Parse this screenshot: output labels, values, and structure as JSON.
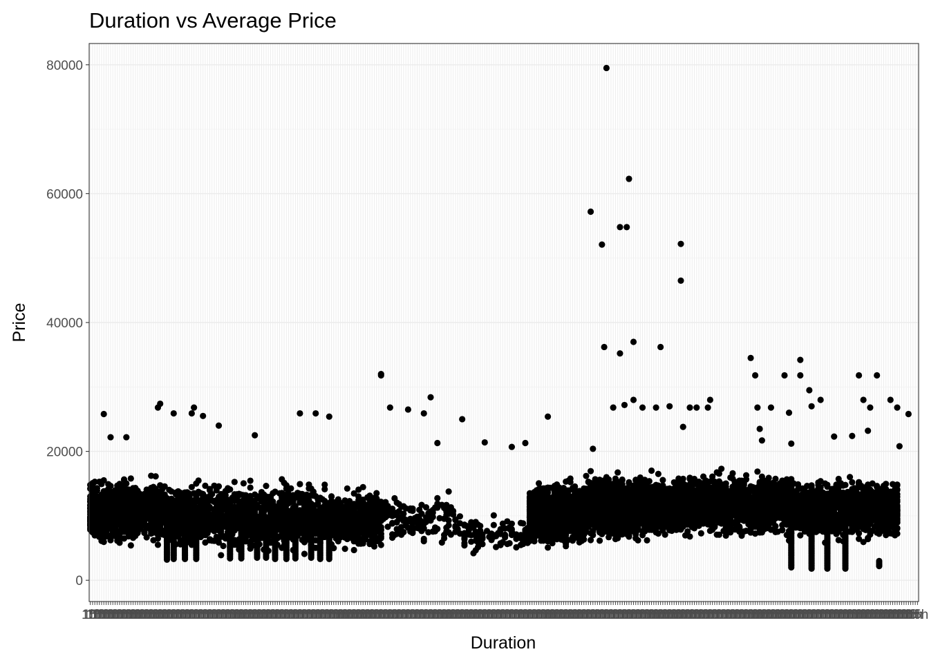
{
  "chart_data": {
    "type": "scatter",
    "title": "Duration vs Average Price",
    "xlabel": "Duration",
    "ylabel": "Price",
    "x_axis": "categorical",
    "category_count": 368,
    "ylim": [
      -3300,
      83300
    ],
    "yticks": [
      0,
      20000,
      40000,
      60000,
      80000
    ],
    "ytick_labels": [
      "0",
      "20000",
      "40000",
      "60000",
      "80000"
    ],
    "grid": true,
    "legend": "none",
    "point_color": "#000000",
    "background": "#ffffff",
    "grid_color": "#ebebeb",
    "panel_border_color": "#333333",
    "segments": [
      {
        "from": 0,
        "to": 60,
        "low": 5000,
        "high": 16500,
        "n": 850
      },
      {
        "from": 60,
        "to": 200,
        "low": 4000,
        "high": 16000,
        "n": 1300
      },
      {
        "from": 200,
        "to": 260,
        "low": 4000,
        "high": 15000,
        "n": 500
      },
      {
        "from": 260,
        "to": 330,
        "low": 5000,
        "high": 14000,
        "n": 140
      },
      {
        "from": 330,
        "to": 390,
        "low": 4000,
        "high": 10000,
        "n": 100
      },
      {
        "from": 390,
        "to": 440,
        "low": 4500,
        "high": 16000,
        "n": 1000
      },
      {
        "from": 440,
        "to": 520,
        "low": 5500,
        "high": 17000,
        "n": 1400
      },
      {
        "from": 520,
        "to": 620,
        "low": 6000,
        "high": 17500,
        "n": 1400
      },
      {
        "from": 620,
        "to": 718,
        "low": 5500,
        "high": 16500,
        "n": 1300
      }
    ],
    "columns": [
      {
        "x": 68,
        "low": 3200,
        "high": 9500
      },
      {
        "x": 74,
        "low": 3300,
        "high": 9000
      },
      {
        "x": 84,
        "low": 3300,
        "high": 9500
      },
      {
        "x": 94,
        "low": 3300,
        "high": 10500
      },
      {
        "x": 124,
        "low": 3400,
        "high": 8500
      },
      {
        "x": 134,
        "low": 3400,
        "high": 8500
      },
      {
        "x": 148,
        "low": 3500,
        "high": 8000
      },
      {
        "x": 156,
        "low": 3500,
        "high": 8500
      },
      {
        "x": 164,
        "low": 3300,
        "high": 10000
      },
      {
        "x": 174,
        "low": 3300,
        "high": 11000
      },
      {
        "x": 182,
        "low": 3400,
        "high": 10000
      },
      {
        "x": 196,
        "low": 3500,
        "high": 9000
      },
      {
        "x": 204,
        "low": 3300,
        "high": 9500
      },
      {
        "x": 212,
        "low": 3300,
        "high": 8500
      },
      {
        "x": 622,
        "low": 2000,
        "high": 8000
      },
      {
        "x": 640,
        "low": 1800,
        "high": 9000
      },
      {
        "x": 654,
        "low": 1800,
        "high": 8000
      },
      {
        "x": 670,
        "low": 1800,
        "high": 9000
      },
      {
        "x": 700,
        "low": 2200,
        "high": 3000
      }
    ],
    "highlights": [
      {
        "x": 458,
        "y": 79500
      },
      {
        "x": 478,
        "y": 62300
      },
      {
        "x": 443,
        "y": 57200
      },
      {
        "x": 470,
        "y": 54800
      },
      {
        "x": 475,
        "y": 54800
      },
      {
        "x": 454,
        "y": 52100
      },
      {
        "x": 524,
        "y": 52200
      },
      {
        "x": 524,
        "y": 46500
      },
      {
        "x": 482,
        "y": 37000
      },
      {
        "x": 455,
        "y": 36200
      },
      {
        "x": 505,
        "y": 36200
      },
      {
        "x": 469,
        "y": 35200
      },
      {
        "x": 586,
        "y": 34500
      },
      {
        "x": 629,
        "y": 34200
      },
      {
        "x": 257,
        "y": 31800
      },
      {
        "x": 258,
        "y": 32000
      },
      {
        "x": 590,
        "y": 31800
      },
      {
        "x": 615,
        "y": 31800
      },
      {
        "x": 630,
        "y": 31800
      },
      {
        "x": 682,
        "y": 31800
      },
      {
        "x": 697,
        "y": 31800
      },
      {
        "x": 638,
        "y": 29500
      },
      {
        "x": 302,
        "y": 28400
      },
      {
        "x": 481,
        "y": 28000
      },
      {
        "x": 550,
        "y": 28000
      },
      {
        "x": 648,
        "y": 28000
      },
      {
        "x": 685,
        "y": 28000
      },
      {
        "x": 710,
        "y": 28000
      },
      {
        "x": 266,
        "y": 26800
      },
      {
        "x": 281,
        "y": 26500
      },
      {
        "x": 463,
        "y": 26800
      },
      {
        "x": 474,
        "y": 27200
      },
      {
        "x": 490,
        "y": 26800
      },
      {
        "x": 502,
        "y": 26800
      },
      {
        "x": 514,
        "y": 27000
      },
      {
        "x": 532,
        "y": 26800
      },
      {
        "x": 538,
        "y": 26800
      },
      {
        "x": 548,
        "y": 26800
      },
      {
        "x": 591,
        "y": 26800
      },
      {
        "x": 603,
        "y": 26800
      },
      {
        "x": 640,
        "y": 27000
      },
      {
        "x": 691,
        "y": 26800
      },
      {
        "x": 716,
        "y": 26800
      },
      {
        "x": 296,
        "y": 25900
      },
      {
        "x": 330,
        "y": 25000
      },
      {
        "x": 74,
        "y": 25900
      },
      {
        "x": 89,
        "y": 25900
      },
      {
        "x": 185,
        "y": 25900
      },
      {
        "x": 200,
        "y": 25900
      },
      {
        "x": 212,
        "y": 25400
      },
      {
        "x": 405,
        "y": 25400
      },
      {
        "x": 620,
        "y": 26000
      },
      {
        "x": 726,
        "y": 25800
      },
      {
        "x": 525,
        "y": 23800
      },
      {
        "x": 593,
        "y": 23500
      },
      {
        "x": 676,
        "y": 22400
      },
      {
        "x": 689,
        "y": 23200
      },
      {
        "x": 307,
        "y": 21300
      },
      {
        "x": 349,
        "y": 21400
      },
      {
        "x": 373,
        "y": 20700
      },
      {
        "x": 386,
        "y": 21300
      },
      {
        "x": 445,
        "y": 20400
      },
      {
        "x": 595,
        "y": 21700
      },
      {
        "x": 622,
        "y": 21200
      },
      {
        "x": 660,
        "y": 22300
      },
      {
        "x": 718,
        "y": 20800
      },
      {
        "x": 12,
        "y": 25800
      },
      {
        "x": 18,
        "y": 22200
      },
      {
        "x": 32,
        "y": 22200
      },
      {
        "x": 60,
        "y": 26800
      },
      {
        "x": 62,
        "y": 27400
      },
      {
        "x": 91,
        "y": 26800
      },
      {
        "x": 145,
        "y": 22500
      },
      {
        "x": 114,
        "y": 24000
      },
      {
        "x": 100,
        "y": 25500
      }
    ]
  }
}
